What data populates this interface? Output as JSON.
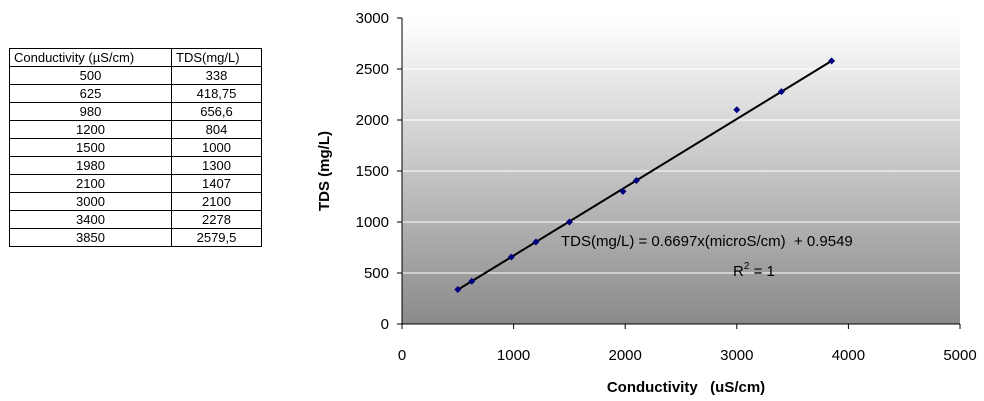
{
  "table": {
    "headers": [
      "Conductivity (µS/cm)",
      "TDS(mg/L)"
    ],
    "rows": [
      [
        "500",
        "338"
      ],
      [
        "625",
        "418,75"
      ],
      [
        "980",
        "656,6"
      ],
      [
        "1200",
        "804"
      ],
      [
        "1500",
        "1000"
      ],
      [
        "1980",
        "1300"
      ],
      [
        "2100",
        "1407"
      ],
      [
        "3000",
        "2100"
      ],
      [
        "3400",
        "2278"
      ],
      [
        "3850",
        "2579,5"
      ]
    ]
  },
  "chart_data": {
    "type": "scatter",
    "xlabel": "Conductivity   (uS/cm)",
    "ylabel": "TDS (mg/L)",
    "xlim": [
      0,
      5000
    ],
    "ylim": [
      0,
      3000
    ],
    "xticks": [
      0,
      1000,
      2000,
      3000,
      4000,
      5000
    ],
    "yticks": [
      0,
      500,
      1000,
      1500,
      2000,
      2500,
      3000
    ],
    "grid": "horizontal",
    "series": [
      {
        "x": [
          500,
          625,
          980,
          1200,
          1500,
          1980,
          2100,
          3000,
          3400,
          3850
        ],
        "y": [
          338,
          418.75,
          656.6,
          804,
          1000,
          1300,
          1407,
          2100,
          2278,
          2579.5
        ],
        "color": "#000080"
      }
    ],
    "trendline": {
      "slope": 0.6697,
      "intercept": 0.9549,
      "x_range": [
        500,
        3850
      ],
      "color": "#000000"
    },
    "annotations": {
      "equation": "TDS(mg/L) = 0.6697x(microS/cm)  + 0.9549",
      "r2_prefix": "R",
      "r2_sup": "2",
      "r2_suffix": " = 1"
    },
    "plot_background": "gradient-white-to-gray"
  }
}
